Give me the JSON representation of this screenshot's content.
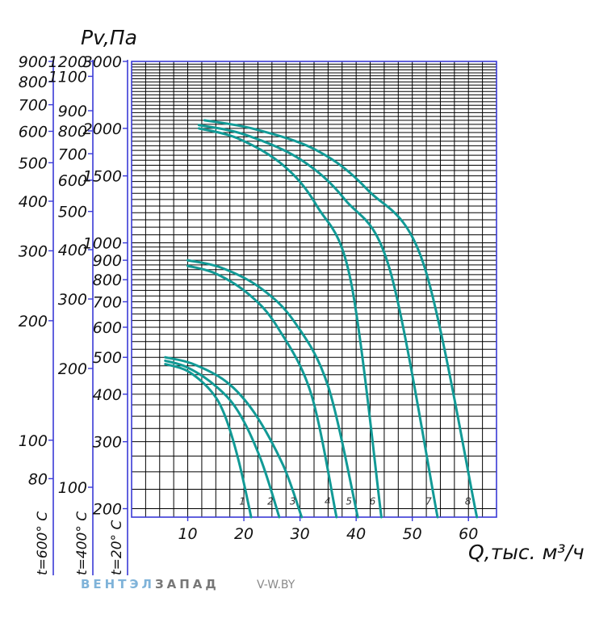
{
  "chart_data": {
    "type": "line",
    "title": "",
    "xlabel": "Q,тыс. м³/ч",
    "ylabel": "Pv,Па",
    "xlim": [
      0,
      65
    ],
    "x_ticks": [
      10,
      20,
      30,
      40,
      50,
      60
    ],
    "log_y": true,
    "grid": true,
    "y_axes": [
      {
        "name": "t=20° C",
        "ylim": [
          190,
          3000
        ],
        "ticks": [
          200,
          300,
          400,
          500,
          600,
          700,
          800,
          900,
          1000,
          1500,
          2000,
          3000
        ]
      },
      {
        "name": "t=400° C",
        "ylim": [
          84,
          1200
        ],
        "ticks": [
          100,
          200,
          300,
          400,
          500,
          600,
          700,
          800,
          900,
          1100,
          1200
        ]
      },
      {
        "name": "t=600° C",
        "ylim": [
          64,
          900
        ],
        "ticks": [
          80,
          100,
          200,
          300,
          400,
          500,
          600,
          700,
          800,
          900
        ]
      }
    ],
    "series": [
      {
        "name": "1",
        "x": [
          6,
          10,
          14,
          16.5,
          19,
          21.3
        ],
        "y": [
          480,
          460,
          410,
          355,
          270,
          190
        ]
      },
      {
        "name": "2",
        "x": [
          6,
          10,
          15,
          19,
          23,
          26.3
        ],
        "y": [
          490,
          470,
          420,
          360,
          270,
          190
        ]
      },
      {
        "name": "3",
        "x": [
          6,
          11,
          17,
          22,
          27,
          30.3
        ],
        "y": [
          500,
          480,
          430,
          355,
          260,
          190
        ]
      },
      {
        "name": "4",
        "x": [
          10,
          15,
          21,
          26,
          32,
          36.5
        ],
        "y": [
          870,
          830,
          730,
          600,
          400,
          190
        ]
      },
      {
        "name": "5",
        "x": [
          10,
          16,
          23,
          29,
          35,
          40.3
        ],
        "y": [
          900,
          860,
          760,
          620,
          420,
          190
        ]
      },
      {
        "name": "6",
        "x": [
          12,
          19,
          27,
          33,
          39,
          44.5
        ],
        "y": [
          2000,
          1880,
          1600,
          1250,
          800,
          190
        ]
      },
      {
        "name": "7",
        "x": [
          12,
          20,
          30,
          38,
          46,
          54.5
        ],
        "y": [
          2040,
          1930,
          1660,
          1300,
          850,
          190
        ]
      },
      {
        "name": "8",
        "x": [
          13,
          22,
          33,
          42,
          52,
          61.5
        ],
        "y": [
          2100,
          1990,
          1750,
          1380,
          880,
          190
        ]
      }
    ],
    "curve_color": "#129a96"
  },
  "branding": {
    "brand_part1": "ВЕНТЭЛ",
    "brand_part2": "ЗАПАД",
    "site": "V-W.BY"
  }
}
